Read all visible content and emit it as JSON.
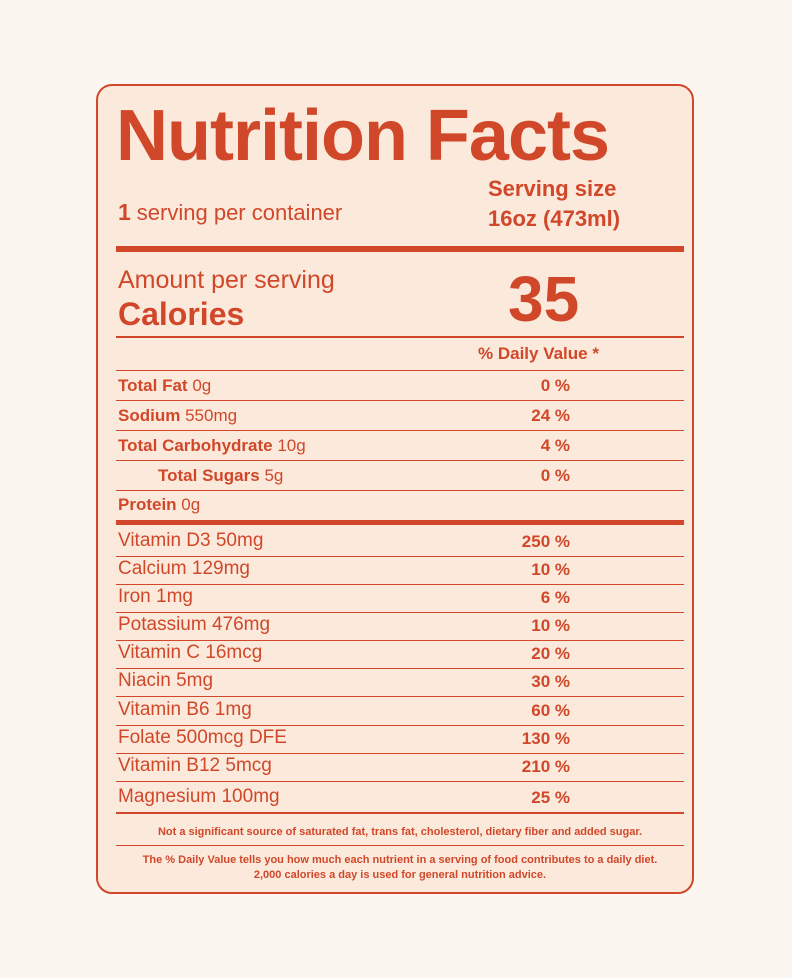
{
  "label": {
    "title": "Nutrition Facts",
    "servings_count": "1",
    "servings_text": "serving per container",
    "serving_size_label": "Serving size",
    "serving_size_value": "16oz (473ml)",
    "amount_per_serving": "Amount per serving",
    "calories_label": "Calories",
    "calories_value": "35",
    "dv_header": "% Daily Value *",
    "nutrients": [
      {
        "name": "Total Fat",
        "amount": "0g",
        "pct": "0 %"
      },
      {
        "name": "Sodium",
        "amount": "550mg",
        "pct": "24 %"
      },
      {
        "name": "Total Carbohydrate",
        "amount": "10g",
        "pct": "4 %"
      },
      {
        "name": "Total Sugars",
        "amount": "5g",
        "pct": "0 %"
      },
      {
        "name": "Protein",
        "amount": "0g",
        "pct": ""
      }
    ],
    "vitamins": [
      {
        "name": "Vitamin D3 50mg",
        "pct": "250 %"
      },
      {
        "name": "Calcium 129mg",
        "pct": "10 %"
      },
      {
        "name": "Iron 1mg",
        "pct": "6 %"
      },
      {
        "name": "Potassium 476mg",
        "pct": "10 %"
      },
      {
        "name": "Vitamin C 16mcg",
        "pct": "20 %"
      },
      {
        "name": "Niacin 5mg",
        "pct": "30 %"
      },
      {
        "name": "Vitamin B6 1mg",
        "pct": "60 %"
      },
      {
        "name": "Folate 500mcg DFE",
        "pct": "130 %"
      },
      {
        "name": "Vitamin B12  5mcg",
        "pct": "210 %"
      },
      {
        "name": "Magnesium 100mg",
        "pct": "25 %"
      }
    ],
    "footnote_1": "Not a significant source of saturated fat, trans fat, cholesterol, dietary fiber and added sugar.",
    "footnote_2": "The % Daily Value tells you how much each nutrient in a serving of food contributes to a daily diet. 2,000 calories a day is used for general nutrition advice."
  },
  "colors": {
    "accent": "#D1472A",
    "label_background": "#FBEADB",
    "page_background": "#FBF6F0"
  }
}
